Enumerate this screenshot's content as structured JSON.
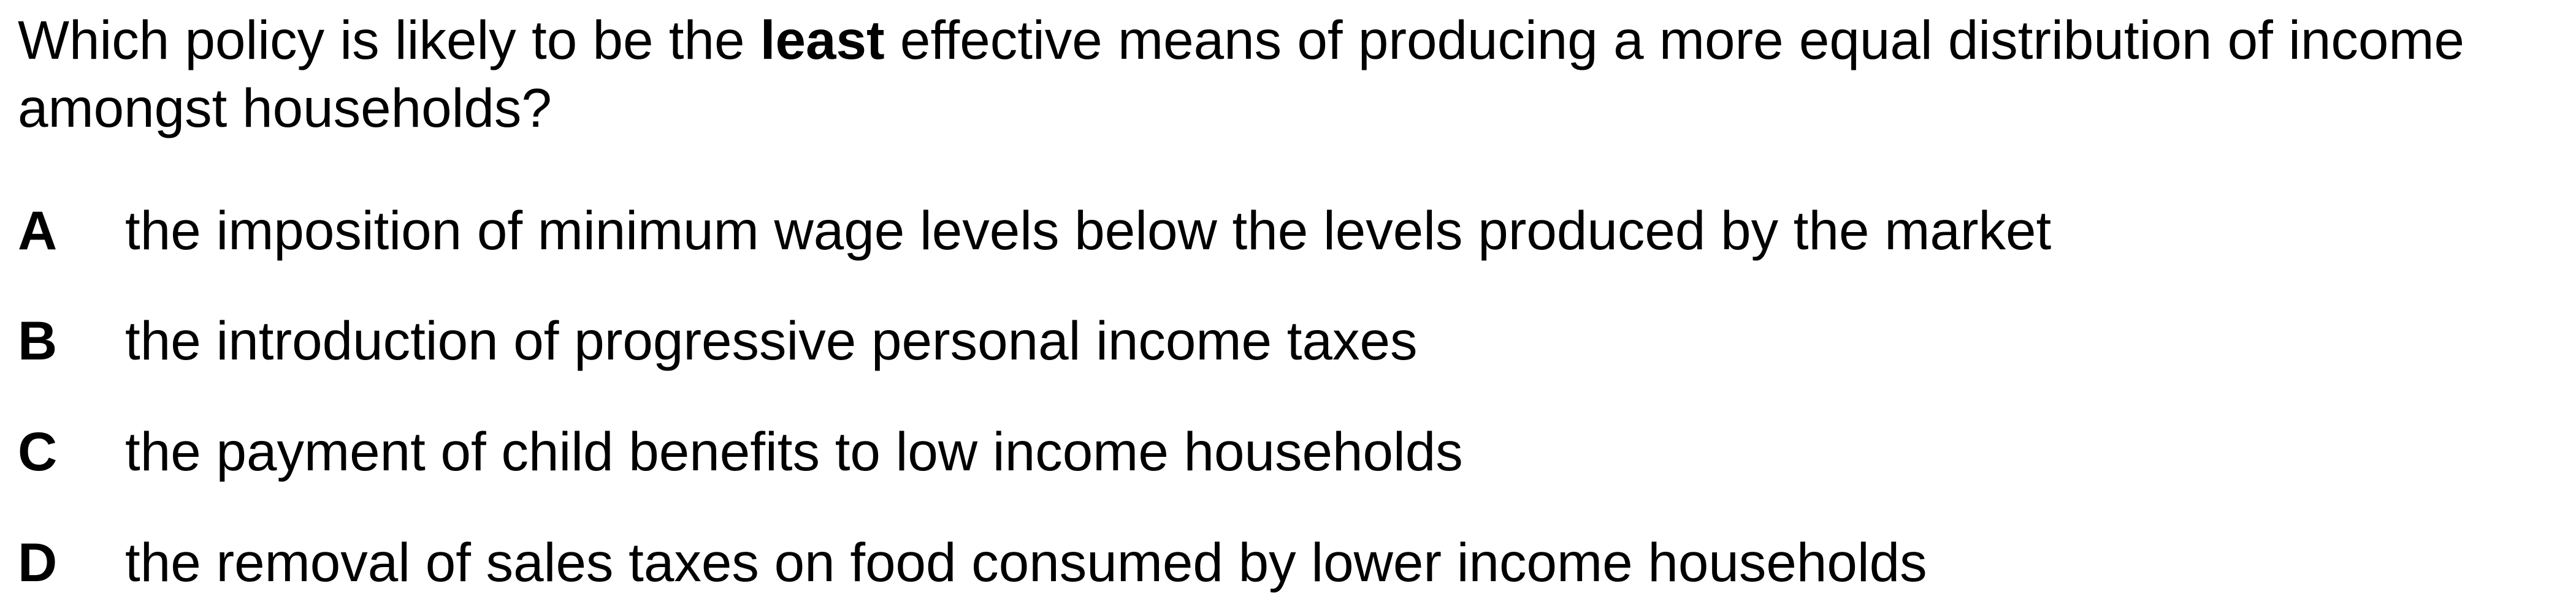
{
  "question": {
    "before": "Which policy is likely to be the ",
    "emphasis": "least",
    "after": " effective means of producing a more equal distribution of income amongst households?"
  },
  "options": [
    {
      "letter": "A",
      "text": "the imposition of minimum wage levels below the levels produced by the market"
    },
    {
      "letter": "B",
      "text": "the introduction of progressive personal income taxes"
    },
    {
      "letter": "C",
      "text": "the payment of child benefits to low income households"
    },
    {
      "letter": "D",
      "text": "the removal of sales taxes on food consumed by lower income households"
    }
  ]
}
